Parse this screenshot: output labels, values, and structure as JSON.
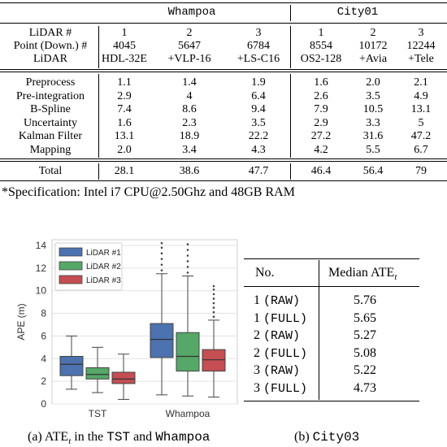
{
  "timing_table": {
    "group_headers": [
      "Whampoa",
      "City01"
    ],
    "header_labels": [
      "LiDAR #",
      "Point (Down.) #",
      "LiDAR"
    ],
    "columns": [
      {
        "lidar": "1",
        "points": "4045",
        "sensor": "HDL-32E"
      },
      {
        "lidar": "2",
        "points": "5647",
        "sensor": "+VLP-16"
      },
      {
        "lidar": "3",
        "points": "6784",
        "sensor": "+LS-C16"
      },
      {
        "lidar": "1",
        "points": "8554",
        "sensor": "OS2-128"
      },
      {
        "lidar": "2",
        "points": "10172",
        "sensor": "+Avia"
      },
      {
        "lidar": "3",
        "points": "12244",
        "sensor": "+Tele"
      }
    ],
    "rows": [
      {
        "label": "Preprocess",
        "values": [
          "1.1",
          "1.4",
          "1.9",
          "1.6",
          "2.0",
          "2.1"
        ]
      },
      {
        "label": "Pre-integration",
        "values": [
          "2.9",
          "4",
          "6.4",
          "2.6",
          "3.5",
          "4.9"
        ]
      },
      {
        "label": "B-Spline",
        "values": [
          "7.4",
          "8.6",
          "9.4",
          "7.9",
          "10.5",
          "13.1"
        ]
      },
      {
        "label": "Uncertainty",
        "values": [
          "1.6",
          "2.3",
          "3.5",
          "2.9",
          "3.3",
          "5"
        ]
      },
      {
        "label": "Kalman Filter",
        "values": [
          "13.1",
          "18.9",
          "22.2",
          "27.2",
          "31.6",
          "47.2"
        ]
      },
      {
        "label": "Mapping",
        "values": [
          "2.0",
          "3.4",
          "4.3",
          "4.2",
          "5.5",
          "6.7"
        ]
      }
    ],
    "total": {
      "label": "Total",
      "values": [
        "28.1",
        "38.6",
        "47.7",
        "46.4",
        "56.4",
        "79"
      ]
    }
  },
  "footnote": "*Specification: Intel i7 CPU@2.50Ghz and 48GB RAM",
  "chart_data": {
    "type": "box",
    "ylabel": "APE (m)",
    "ylim": [
      0,
      14.5
    ],
    "yticks": [
      0,
      2,
      4,
      6,
      8,
      10,
      12,
      14
    ],
    "categories": [
      "TST",
      "Whampoa"
    ],
    "legend": {
      "placement": "top-left",
      "entries": [
        "LiDAR #1",
        "LiDAR #2",
        "LiDAR #3"
      ]
    },
    "grid": true,
    "colors": [
      "#4c72b0",
      "#55a868",
      "#c44e52"
    ],
    "series": [
      {
        "name": "LiDAR #1",
        "boxes": [
          {
            "category": "TST",
            "whisker_low": 1.3,
            "q1": 2.5,
            "median": 3.5,
            "q3": 4.2,
            "whisker_high": 6.0
          },
          {
            "category": "Whampoa",
            "whisker_low": 0.8,
            "q1": 4.1,
            "median": 5.7,
            "q3": 7.1,
            "whisker_high": 11.5,
            "outliers": [
              11.8,
              12.3,
              12.8,
              13.3,
              13.8,
              14.2
            ]
          }
        ]
      },
      {
        "name": "LiDAR #2",
        "boxes": [
          {
            "category": "TST",
            "whisker_low": 1.0,
            "q1": 2.2,
            "median": 2.6,
            "q3": 3.2,
            "whisker_high": 5.0
          },
          {
            "category": "Whampoa",
            "whisker_low": 0.7,
            "q1": 2.9,
            "median": 4.2,
            "q3": 6.3,
            "whisker_high": 11.3,
            "outliers": [
              11.6,
              12.1,
              12.6,
              13.1,
              13.6,
              14.1
            ]
          }
        ]
      },
      {
        "name": "LiDAR #3",
        "boxes": [
          {
            "category": "TST",
            "whisker_low": 0.4,
            "q1": 1.8,
            "median": 2.2,
            "q3": 2.8,
            "whisker_high": 4.4
          },
          {
            "category": "Whampoa",
            "whisker_low": 0.6,
            "q1": 2.9,
            "median": 3.9,
            "q3": 4.8,
            "whisker_high": 7.4,
            "outliers": [
              7.7,
              8.1,
              8.5,
              8.9,
              9.3,
              9.7,
              10.1,
              10.4
            ]
          }
        ]
      }
    ]
  },
  "median_table": {
    "header": {
      "no": "No.",
      "median": "Median ATE",
      "median_sub": "t"
    },
    "rows": [
      {
        "num": "1",
        "mode": "(RAW)",
        "value": "5.76"
      },
      {
        "num": "1",
        "mode": "(FULL)",
        "value": "5.65"
      },
      {
        "num": "2",
        "mode": "(RAW)",
        "value": "5.27"
      },
      {
        "num": "2",
        "mode": "(FULL)",
        "value": "5.08"
      },
      {
        "num": "3",
        "mode": "(RAW)",
        "value": "5.22"
      },
      {
        "num": "3",
        "mode": "(FULL)",
        "value": "4.73"
      }
    ]
  },
  "captions": {
    "a": {
      "prefix": "(a) ATE",
      "sub": "t",
      "mid": " in the ",
      "name1": "TST",
      "and": " and ",
      "name2": "Whampoa"
    },
    "b": {
      "prefix": "(b) ",
      "name": "City03"
    }
  }
}
